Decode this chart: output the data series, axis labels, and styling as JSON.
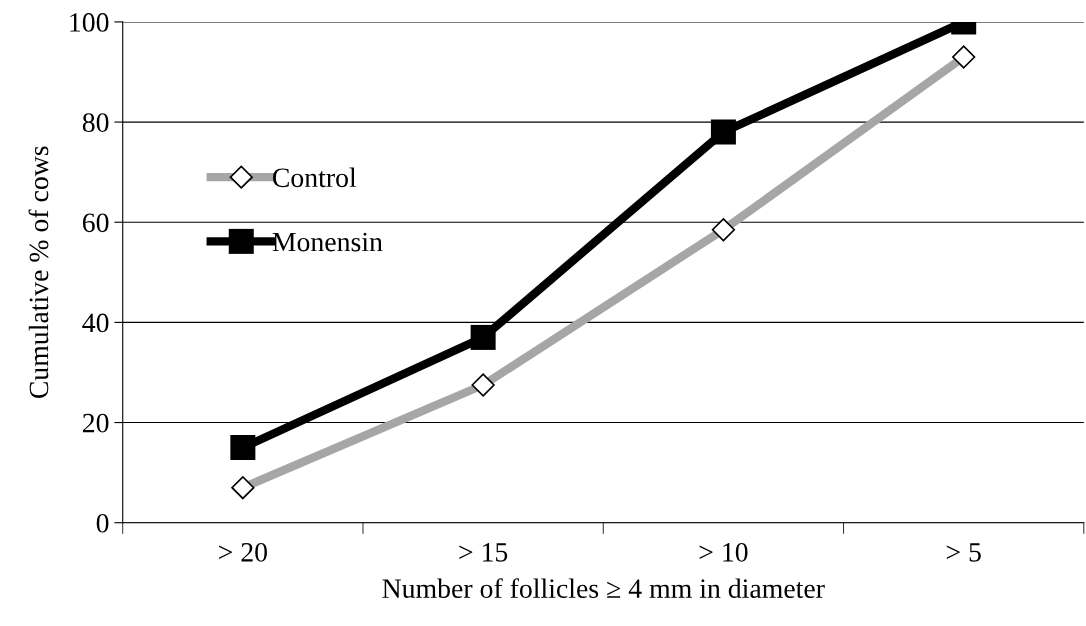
{
  "chart_data": {
    "type": "line",
    "xlabel": "Number of follicles ≥ 4 mm in diameter",
    "ylabel": "Cumulative % of cows",
    "categories": [
      "> 20",
      "> 15",
      "> 10",
      "> 5"
    ],
    "series": [
      {
        "name": "Control",
        "color": "#a6a6a6",
        "marker": "diamond",
        "values": [
          7,
          27.5,
          58.5,
          93
        ]
      },
      {
        "name": "Monensin",
        "color": "#000000",
        "marker": "square",
        "values": [
          15,
          37,
          78,
          100
        ]
      }
    ],
    "ylim": [
      0,
      100
    ],
    "yticks": [
      0,
      20,
      40,
      60,
      80,
      100
    ],
    "grid": "y",
    "legend": "left",
    "line_style": "solid"
  }
}
